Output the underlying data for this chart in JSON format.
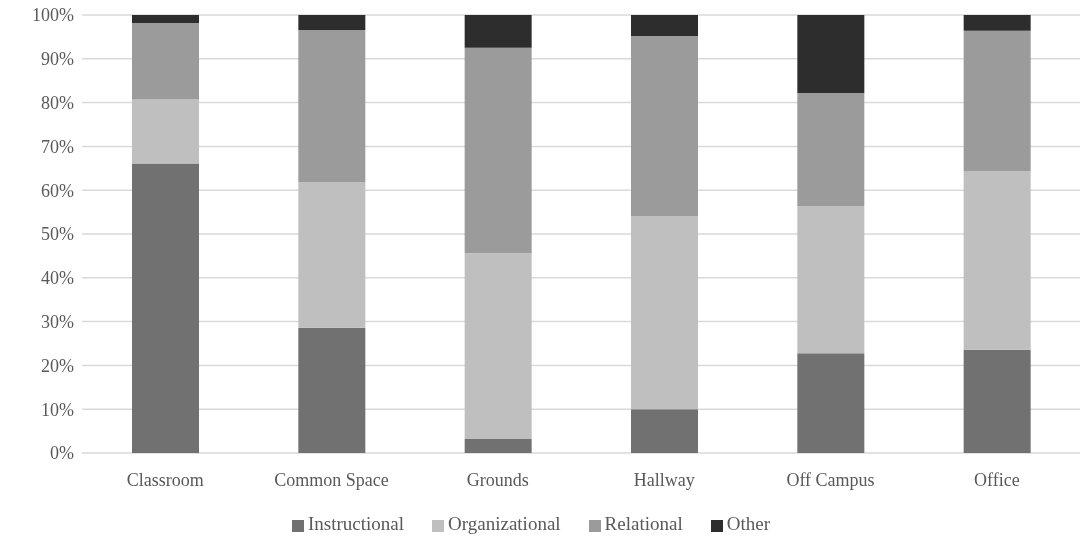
{
  "chart_data": {
    "type": "bar",
    "stacked": true,
    "categories": [
      "Classroom",
      "Common Space",
      "Grounds",
      "Hallway",
      "Off Campus",
      "Office"
    ],
    "series": [
      {
        "name": "Instructional",
        "color": "#717171",
        "values": [
          66.1,
          28.6,
          3.2,
          10.0,
          22.8,
          23.6
        ]
      },
      {
        "name": "Organizational",
        "color": "#bfbfbf",
        "values": [
          14.6,
          33.3,
          42.4,
          44.1,
          33.6,
          40.8
        ]
      },
      {
        "name": "Relational",
        "color": "#9b9b9b",
        "values": [
          17.5,
          34.7,
          46.9,
          41.1,
          25.8,
          32.0
        ]
      },
      {
        "name": "Other",
        "color": "#2d2d2d",
        "values": [
          1.8,
          3.4,
          7.5,
          4.8,
          17.8,
          3.6
        ]
      }
    ],
    "ylim": [
      0,
      100
    ],
    "yticks": [
      {
        "value": 0,
        "label": "0%"
      },
      {
        "value": 10,
        "label": "10%"
      },
      {
        "value": 20,
        "label": "20%"
      },
      {
        "value": 30,
        "label": "30%"
      },
      {
        "value": 40,
        "label": "40%"
      },
      {
        "value": 50,
        "label": "50%"
      },
      {
        "value": 60,
        "label": "60%"
      },
      {
        "value": 70,
        "label": "70%"
      },
      {
        "value": 80,
        "label": "80%"
      },
      {
        "value": 90,
        "label": "90%"
      },
      {
        "value": 100,
        "label": "100%"
      }
    ],
    "grid": "y",
    "legend": "bottom"
  }
}
